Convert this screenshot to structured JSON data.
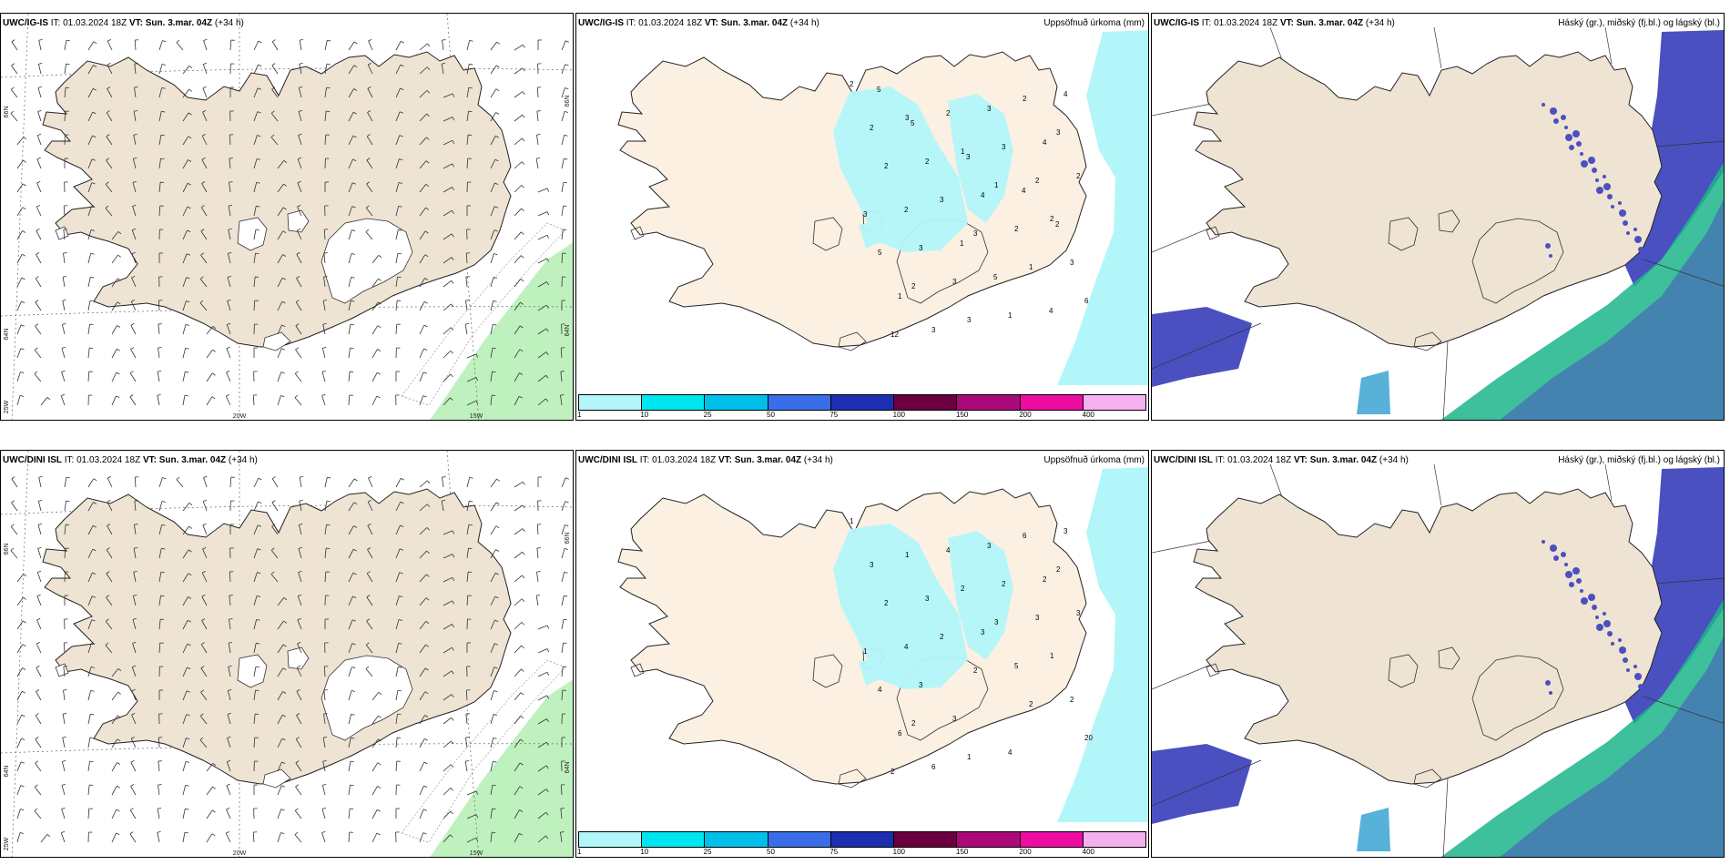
{
  "panels": [
    {
      "id": "r1c1",
      "model": "UWC/IG-IS",
      "it_label": "IT:",
      "it_value": "01.03.2024 18Z",
      "vt_label": "VT:",
      "vt_value": "Sun. 3.mar. 04Z",
      "lead": "(+34 h)",
      "right_title": "",
      "kind": "wind",
      "grid_labels": [
        "66N",
        "64N",
        "25W",
        "20W",
        "15W",
        "66N",
        "64N"
      ]
    },
    {
      "id": "r1c2",
      "model": "UWC/IG-IS",
      "it_label": "IT:",
      "it_value": "01.03.2024 18Z",
      "vt_label": "VT:",
      "vt_value": "Sun. 3.mar. 04Z",
      "lead": "(+34 h)",
      "right_title": "Uppsöfnuð úrkoma (mm)",
      "kind": "precip",
      "values": [
        "2",
        "3",
        "1",
        "1",
        "2",
        "5",
        "2",
        "3",
        "2",
        "3",
        "2",
        "3",
        "3",
        "1",
        "6",
        "12",
        "2",
        "3",
        "2",
        "3",
        "3",
        "3",
        "1",
        "4",
        "2",
        "2",
        "4",
        "2",
        "3",
        "1",
        "3",
        "3",
        "4",
        "2",
        "2",
        "1",
        "5",
        "4",
        "5",
        "5",
        "3",
        "4",
        "2"
      ]
    },
    {
      "id": "r1c3",
      "model": "UWC/IG-IS",
      "it_label": "IT:",
      "it_value": "01.03.2024 18Z",
      "vt_label": "VT:",
      "vt_value": "Sun. 3.mar. 04Z",
      "lead": "(+34 h)",
      "right_title": "Háský (gr.), miðský (fj.bl.) og lágský (bl.)",
      "kind": "cloud"
    },
    {
      "id": "r2c1",
      "model": "UWC/DINI ISL",
      "it_label": "IT:",
      "it_value": "01.03.2024 18Z",
      "vt_label": "VT:",
      "vt_value": "Sun. 3.mar. 04Z",
      "lead": "(+34 h)",
      "right_title": "",
      "kind": "wind",
      "grid_labels": [
        "66N",
        "64N",
        "25W",
        "20W",
        "15W",
        "66N",
        "64N"
      ]
    },
    {
      "id": "r2c2",
      "model": "UWC/DINI ISL",
      "it_label": "IT:",
      "it_value": "01.03.2024 18Z",
      "vt_label": "VT:",
      "vt_value": "Sun. 3.mar. 04Z",
      "lead": "(+34 h)",
      "right_title": "Uppsöfnuð úrkoma (mm)",
      "kind": "precip",
      "values": [
        "1",
        "1",
        "2",
        "3",
        "1",
        "4",
        "2",
        "1",
        "6",
        "2",
        "2",
        "2",
        "2",
        "2",
        "20",
        "2",
        "4",
        "2",
        "3",
        "1",
        "3",
        "3",
        "4",
        "3",
        "3",
        "3",
        "3",
        "5",
        "2",
        "6",
        "6",
        "3",
        "2",
        "3",
        "4"
      ]
    },
    {
      "id": "r2c3",
      "model": "UWC/DINI ISL",
      "it_label": "IT:",
      "it_value": "01.03.2024 18Z",
      "vt_label": "VT:",
      "vt_value": "Sun. 3.mar. 04Z",
      "lead": "(+34 h)",
      "right_title": "Háský (gr.), miðský (fj.bl.) og lágský (bl.)",
      "kind": "cloud"
    }
  ],
  "precip_legend": {
    "colors": [
      "#b3f6f9",
      "#00e6ee",
      "#00bfe8",
      "#3a6ee8",
      "#1b2fb0",
      "#6a0040",
      "#aa0a78",
      "#ee0ca3",
      "#f5b0f0"
    ],
    "ticks": [
      "1",
      "10",
      "25",
      "50",
      "75",
      "100",
      "150",
      "200",
      "400"
    ]
  },
  "colors": {
    "land": "#efe3d3",
    "land_precip": "#fcf0e2",
    "precip": "#b3f6f9",
    "ice": "#ffffff",
    "high_cloud": "#2d9ed0",
    "mid_cloud": "#1bb58a",
    "low_cloud": "#4a50c0",
    "wind_green": "#b8efb8"
  }
}
